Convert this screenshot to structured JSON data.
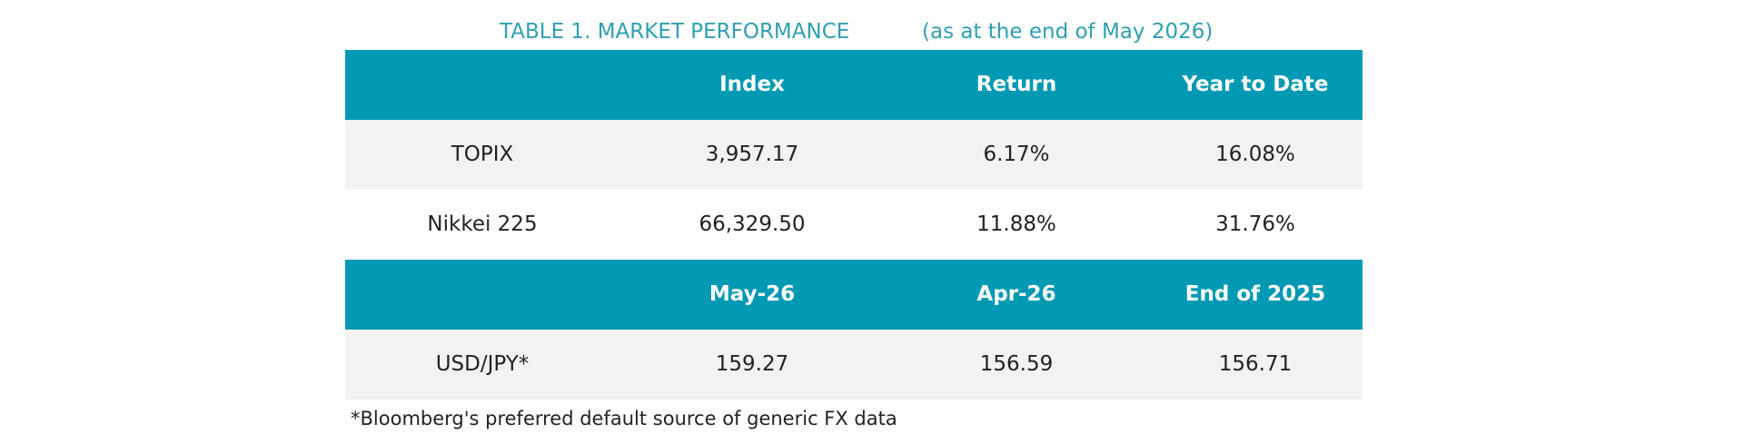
{
  "title": "TABLE 1. MARKET PERFORMANCE",
  "subtitle": "(as at the end of May 2026)",
  "table": {
    "sections": [
      {
        "header": [
          "Index",
          "Return",
          "Year to Date"
        ],
        "rows": [
          [
            "TOPIX",
            "3,957.17",
            "6.17%",
            "16.08%"
          ],
          [
            "Nikkei 225",
            "66,329.50",
            "11.88%",
            "31.76%"
          ]
        ]
      },
      {
        "header": [
          "May-26",
          "Apr-26",
          "End of 2025"
        ],
        "rows": [
          [
            "USD/JPY*",
            "159.27",
            "156.59",
            "156.71"
          ]
        ]
      }
    ]
  },
  "footnote": "*Bloomberg's preferred default source of generic FX data"
}
